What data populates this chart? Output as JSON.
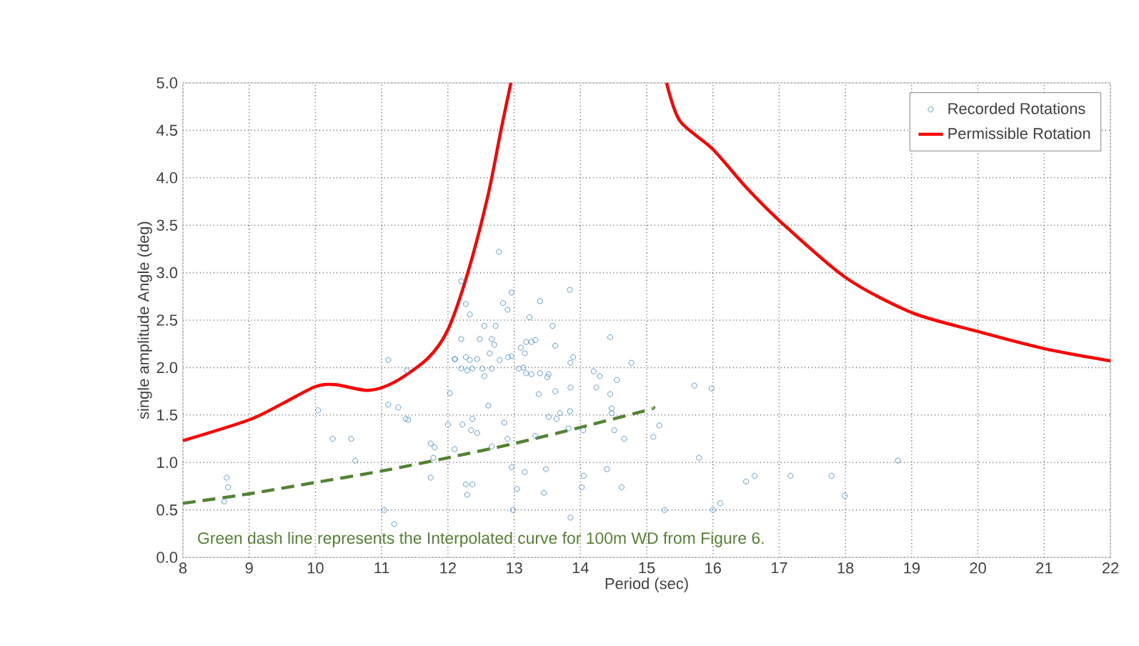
{
  "chart_data": {
    "type": "scatter",
    "xlabel": "Period (sec)",
    "ylabel": "single amplitude Angle (deg)",
    "xlim": [
      8,
      22
    ],
    "ylim": [
      0,
      5
    ],
    "xticks": [
      8,
      9,
      10,
      11,
      12,
      13,
      14,
      15,
      16,
      17,
      18,
      19,
      20,
      21,
      22
    ],
    "yticks": [
      {
        "value": 0,
        "label": "0.0"
      },
      {
        "value": 0.5,
        "label": "0.5"
      },
      {
        "value": 1,
        "label": "1.0"
      },
      {
        "value": 1.5,
        "label": "1.5"
      },
      {
        "value": 2,
        "label": "2.0"
      },
      {
        "value": 2.5,
        "label": "2.5"
      },
      {
        "value": 3,
        "label": "3.0"
      },
      {
        "value": 3.5,
        "label": "3.5"
      },
      {
        "value": 4,
        "label": "4.0"
      },
      {
        "value": 4.5,
        "label": "4.5"
      },
      {
        "value": 5,
        "label": "5.0"
      }
    ],
    "grid": true,
    "legend": "top right",
    "annotations": [
      "Green dash line represents the Interpolated curve for 100m WD from Figure 6."
    ],
    "series": [
      {
        "name": "Recorded Rotations",
        "marker": "circle",
        "color": "#5b9bd5",
        "x": [
          11.1,
          11.38,
          10.04,
          11.1,
          11.25,
          11.36,
          11.4,
          10.26,
          10.54,
          10.6,
          8.66,
          8.68,
          8.62,
          11.74,
          11.8,
          11.78,
          12.1,
          11.74,
          11.04,
          11.19,
          12.0,
          12.03,
          12.1,
          12.77,
          12.2,
          12.27,
          12.33,
          12.83,
          12.9,
          12.96,
          13.39,
          13.84,
          13.23,
          13.58,
          12.55,
          12.72,
          12.2,
          12.48,
          12.66,
          12.7,
          14.45,
          13.1,
          13.18,
          13.26,
          13.32,
          13.16,
          13.62,
          12.11,
          12.27,
          12.33,
          12.44,
          12.63,
          12.78,
          12.91,
          12.96,
          12.2,
          12.29,
          12.37,
          12.52,
          12.66,
          12.55,
          13.07,
          13.14,
          13.18,
          13.26,
          13.39,
          13.52,
          13.5,
          13.89,
          13.85,
          14.2,
          14.29,
          14.55,
          14.77,
          13.37,
          13.62,
          13.85,
          14.24,
          14.45,
          12.61,
          14.47,
          14.47,
          13.52,
          13.69,
          13.84,
          13.64,
          12.22,
          12.37,
          12.35,
          12.44,
          12.85,
          12.9,
          13.32,
          13.82,
          14.04,
          14.51,
          14.66,
          15.1,
          15.19,
          12.66,
          12.96,
          13.16,
          13.48,
          14.05,
          14.4,
          12.27,
          12.37,
          12.29,
          13.04,
          13.45,
          14.02,
          14.62,
          12.98,
          13.85,
          15.27,
          15.72,
          15.98,
          15.79,
          16.5,
          16.63,
          17.17,
          17.79,
          17.99,
          18.79,
          16.0,
          16.11
        ],
        "values": [
          2.08,
          1.97,
          1.55,
          1.61,
          1.58,
          1.46,
          1.45,
          1.25,
          1.25,
          1.02,
          0.84,
          0.74,
          0.59,
          1.2,
          1.16,
          1.05,
          1.14,
          0.84,
          0.5,
          0.35,
          1.4,
          1.73,
          2.09,
          3.22,
          2.91,
          2.67,
          2.56,
          2.68,
          2.61,
          2.79,
          2.7,
          2.82,
          2.53,
          2.44,
          2.44,
          2.44,
          2.3,
          2.3,
          2.3,
          2.24,
          2.32,
          2.21,
          2.27,
          2.27,
          2.29,
          2.15,
          2.23,
          2.09,
          2.11,
          2.08,
          2.09,
          2.15,
          2.08,
          2.11,
          2.12,
          1.99,
          1.97,
          1.99,
          1.99,
          1.99,
          1.91,
          1.99,
          2.0,
          1.94,
          1.93,
          1.94,
          1.93,
          1.9,
          2.11,
          2.05,
          1.96,
          1.91,
          1.87,
          2.05,
          1.72,
          1.75,
          1.79,
          1.79,
          1.72,
          1.6,
          1.57,
          1.52,
          1.48,
          1.52,
          1.54,
          1.46,
          1.4,
          1.46,
          1.34,
          1.31,
          1.42,
          1.25,
          1.28,
          1.36,
          1.34,
          1.34,
          1.25,
          1.27,
          1.39,
          1.17,
          0.95,
          0.9,
          0.93,
          0.86,
          0.93,
          0.77,
          0.77,
          0.66,
          0.72,
          0.68,
          0.74,
          0.74,
          0.5,
          0.42,
          0.5,
          1.81,
          1.78,
          1.05,
          0.8,
          0.86,
          0.86,
          0.86,
          0.65,
          1.02,
          0.5,
          0.57
        ]
      },
      {
        "name": "Permissible Rotation",
        "type": "line",
        "marker": "none",
        "line_style": "solid",
        "color": "#ff0000",
        "x": [
          8,
          9,
          9.5,
          10,
          10.3,
          10.8,
          11.2,
          11.7,
          12,
          12.3,
          12.6,
          12.8,
          12.95,
          14,
          15.3,
          15.5,
          16,
          16.5,
          17,
          18,
          19,
          20,
          21,
          22
        ],
        "values": [
          1.23,
          1.45,
          1.62,
          1.8,
          1.82,
          1.76,
          1.85,
          2.1,
          2.4,
          3.0,
          3.8,
          4.5,
          5.0,
          null,
          5.0,
          4.6,
          4.3,
          3.9,
          3.55,
          2.95,
          2.58,
          2.38,
          2.2,
          2.07
        ]
      },
      {
        "type": "line",
        "marker": "none",
        "line_style": "dashed",
        "color": "#548235",
        "x": [
          8,
          9,
          10,
          11,
          12,
          13,
          14,
          15,
          15.1
        ],
        "values": [
          0.57,
          0.67,
          0.79,
          0.91,
          1.05,
          1.2,
          1.37,
          1.55,
          1.58
        ]
      }
    ]
  }
}
